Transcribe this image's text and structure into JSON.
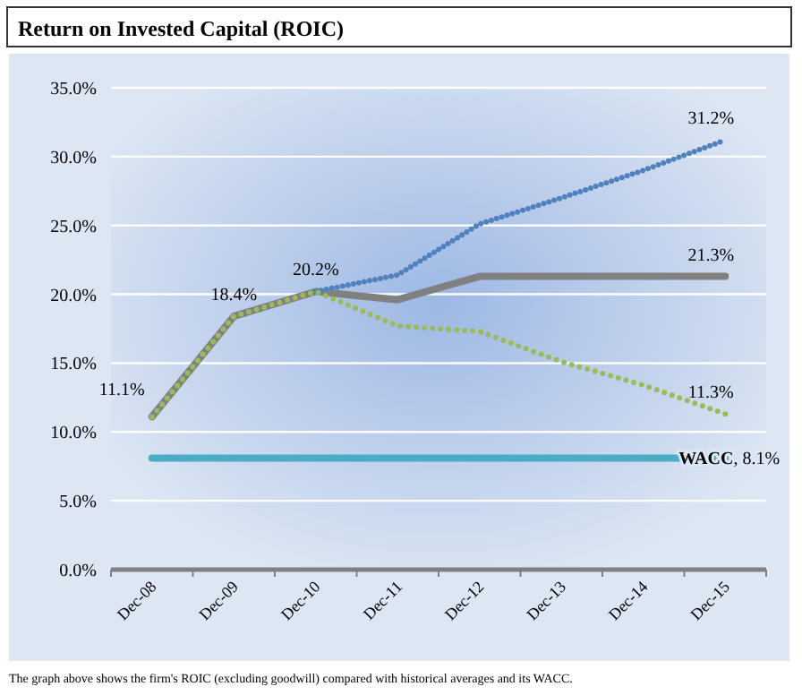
{
  "chart_data": {
    "type": "line",
    "title": "Return on Invested Capital (ROIC)",
    "categories": [
      "Dec-08",
      "Dec-09",
      "Dec-10",
      "Dec-11",
      "Dec-12",
      "Dec-13",
      "Dec-14",
      "Dec-15"
    ],
    "series": [
      {
        "color": "#808080",
        "line_style": "solid",
        "values": [
          11.1,
          18.4,
          20.2,
          19.6,
          21.3,
          21.3,
          21.3,
          21.3
        ],
        "value_labels": [
          "11.1%",
          "18.4%",
          "20.2%",
          null,
          null,
          null,
          null,
          "21.3%"
        ]
      },
      {
        "color": "#4f81bd",
        "line_style": "dotted",
        "values": [
          null,
          null,
          20.2,
          21.4,
          25.1,
          27.0,
          29.0,
          31.2
        ],
        "value_labels": [
          null,
          null,
          null,
          null,
          null,
          null,
          null,
          "31.2%"
        ]
      },
      {
        "color": "#9bbb59",
        "line_style": "dotted",
        "values": [
          11.1,
          18.4,
          20.2,
          17.7,
          17.3,
          15.1,
          13.4,
          11.3
        ],
        "value_labels": [
          null,
          null,
          null,
          null,
          null,
          null,
          null,
          "11.3%"
        ]
      },
      {
        "color": "#4bacc6",
        "line_style": "solid",
        "values": [
          8.1,
          8.1,
          8.1,
          8.1,
          8.1,
          8.1,
          8.1,
          8.1
        ],
        "value_labels": [
          null,
          null,
          null,
          null,
          null,
          null,
          null,
          "WACC, 8.1%"
        ]
      }
    ],
    "ylim": [
      0,
      35
    ],
    "yticks": [
      {
        "value": 0,
        "label": "0.0%"
      },
      {
        "value": 5,
        "label": "5.0%"
      },
      {
        "value": 10,
        "label": "10.0%"
      },
      {
        "value": 15,
        "label": "15.0%"
      },
      {
        "value": 20,
        "label": "20.0%"
      },
      {
        "value": 25,
        "label": "25.0%"
      },
      {
        "value": 30,
        "label": "30.0%"
      },
      {
        "value": 35,
        "label": "35.0%"
      }
    ],
    "grid": "y",
    "marker": "none",
    "annotations": [
      "The graph above shows the firm's ROIC (excluding goodwill) compared with historical averages and its WACC."
    ]
  }
}
